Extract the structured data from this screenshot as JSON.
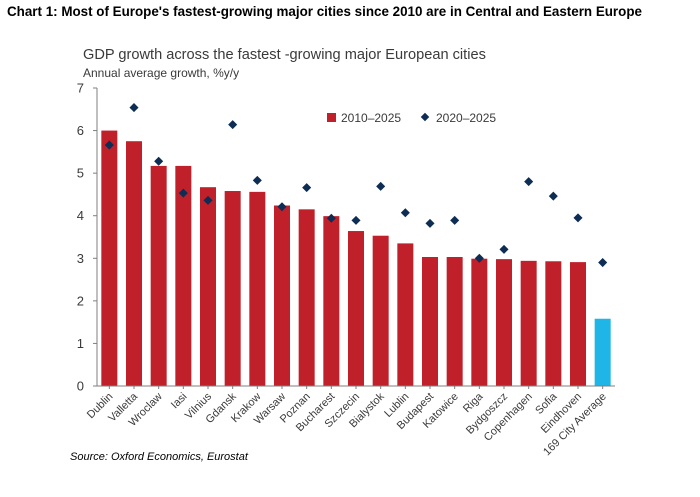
{
  "page": {
    "heading": "Chart 1: Most of Europe's fastest-growing major cities since 2010 are in Central and Eastern Europe",
    "source": "Source: Oxford Economics, Eurostat"
  },
  "colors": {
    "bar": "#c0202a",
    "average_bar": "#1fb5e6",
    "marker": "#0d2d54",
    "axis": "#7f7f7f"
  },
  "chart_data": {
    "type": "bar",
    "title": "GDP growth across the fastest -growing major European cities",
    "ylabel": "Annual average growth, %y/y",
    "xlabel": "",
    "ylim": [
      0,
      7
    ],
    "yticks": [
      "0",
      "1",
      "2",
      "3",
      "4",
      "5",
      "6",
      "7"
    ],
    "grid": false,
    "legend_position": "top-right",
    "categories": [
      "Dublin",
      "Valletta",
      "Wroclaw",
      "Iasi",
      "Vilnius",
      "Gdansk",
      "Krakow",
      "Warsaw",
      "Poznan",
      "Bucharest",
      "Szczecin",
      "Bialystok",
      "Lublin",
      "Budapest",
      "Katowice",
      "Riga",
      "Bydgoszcz",
      "Copenhagen",
      "Sofia",
      "Eindhoven",
      "169 City Average"
    ],
    "series": [
      {
        "name": "2010–2025",
        "kind": "bar",
        "values": [
          6.0,
          5.75,
          5.17,
          5.17,
          4.67,
          4.58,
          4.56,
          4.24,
          4.15,
          3.99,
          3.64,
          3.53,
          3.35,
          3.03,
          3.03,
          2.99,
          2.98,
          2.94,
          2.93,
          2.91,
          1.58
        ]
      },
      {
        "name": "2020–2025",
        "kind": "marker",
        "values": [
          5.66,
          6.54,
          5.28,
          4.53,
          4.36,
          6.14,
          4.83,
          4.21,
          4.66,
          3.94,
          3.89,
          4.69,
          4.07,
          3.82,
          3.89,
          3.0,
          3.21,
          4.8,
          4.46,
          3.95,
          2.9
        ]
      }
    ]
  }
}
